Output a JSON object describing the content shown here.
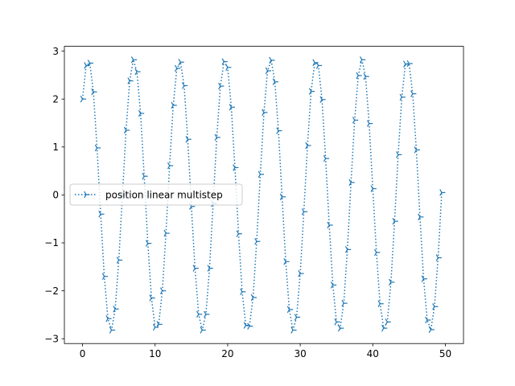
{
  "chart_data": {
    "type": "line",
    "title": "",
    "xlabel": "",
    "ylabel": "",
    "xlim": [
      -2.5,
      52.5
    ],
    "ylim": [
      -3.1,
      3.1
    ],
    "xticks": [
      0,
      10,
      20,
      30,
      40,
      50
    ],
    "yticks": [
      -3,
      -2,
      -1,
      0,
      1,
      2,
      3
    ],
    "xtick_labels": [
      "0",
      "10",
      "20",
      "30",
      "40",
      "50"
    ],
    "ytick_labels": [
      "−3",
      "−2",
      "−1",
      "0",
      "1",
      "2",
      "3"
    ],
    "grid": false,
    "legend_position": "center-left",
    "series": [
      {
        "name": "position linear multistep",
        "color": "#1f77b4",
        "linestyle": "dotted",
        "marker": "tri_right",
        "x": [
          0,
          0.5,
          1,
          1.5,
          2,
          2.5,
          3,
          3.5,
          4,
          4.5,
          5,
          5.5,
          6,
          6.5,
          7,
          7.5,
          8,
          8.5,
          9,
          9.5,
          10,
          10.5,
          11,
          11.5,
          12,
          12.5,
          13,
          13.5,
          14,
          14.5,
          15,
          15.5,
          16,
          16.5,
          17,
          17.5,
          18,
          18.5,
          19,
          19.5,
          20,
          20.5,
          21,
          21.5,
          22,
          22.5,
          23,
          23.5,
          24,
          24.5,
          25,
          25.5,
          26,
          26.5,
          27,
          27.5,
          28,
          28.5,
          29,
          29.5,
          30,
          30.5,
          31,
          31.5,
          32,
          32.5,
          33,
          33.5,
          34,
          34.5,
          35,
          35.5,
          36,
          36.5,
          37,
          37.5,
          38,
          38.5,
          39,
          39.5,
          40,
          40.5,
          41,
          41.5,
          42,
          42.5,
          43,
          43.5,
          44,
          44.5,
          45,
          45.5,
          46,
          46.5,
          47,
          47.5,
          48,
          48.5,
          49,
          49.5
        ],
        "y": [
          2.0,
          2.7,
          2.75,
          2.15,
          0.98,
          -0.4,
          -1.7,
          -2.58,
          -2.82,
          -2.38,
          -1.36,
          0.0,
          1.35,
          2.38,
          2.82,
          2.57,
          1.7,
          0.39,
          -1.01,
          -2.15,
          -2.76,
          -2.7,
          -2.0,
          -0.8,
          0.61,
          1.87,
          2.64,
          2.77,
          2.28,
          1.16,
          -0.24,
          -1.53,
          -2.49,
          -2.82,
          -2.49,
          -1.53,
          -0.18,
          1.2,
          2.27,
          2.78,
          2.66,
          1.83,
          0.57,
          -0.81,
          -2.02,
          -2.72,
          -2.74,
          -2.14,
          -0.97,
          0.43,
          1.72,
          2.59,
          2.81,
          2.36,
          1.34,
          -0.04,
          -1.39,
          -2.39,
          -2.82,
          -2.55,
          -1.64,
          -0.35,
          1.03,
          2.16,
          2.76,
          2.7,
          1.99,
          0.76,
          -0.63,
          -1.88,
          -2.65,
          -2.78,
          -2.26,
          -1.14,
          0.26,
          1.56,
          2.49,
          2.82,
          2.47,
          1.49,
          0.13,
          -1.2,
          -2.27,
          -2.78,
          -2.65,
          -1.82,
          -0.55,
          0.84,
          2.04,
          2.73,
          2.74,
          2.11,
          0.94,
          -0.46,
          -1.75,
          -2.61,
          -2.81,
          -2.33,
          -1.31,
          0.05
        ]
      }
    ]
  }
}
